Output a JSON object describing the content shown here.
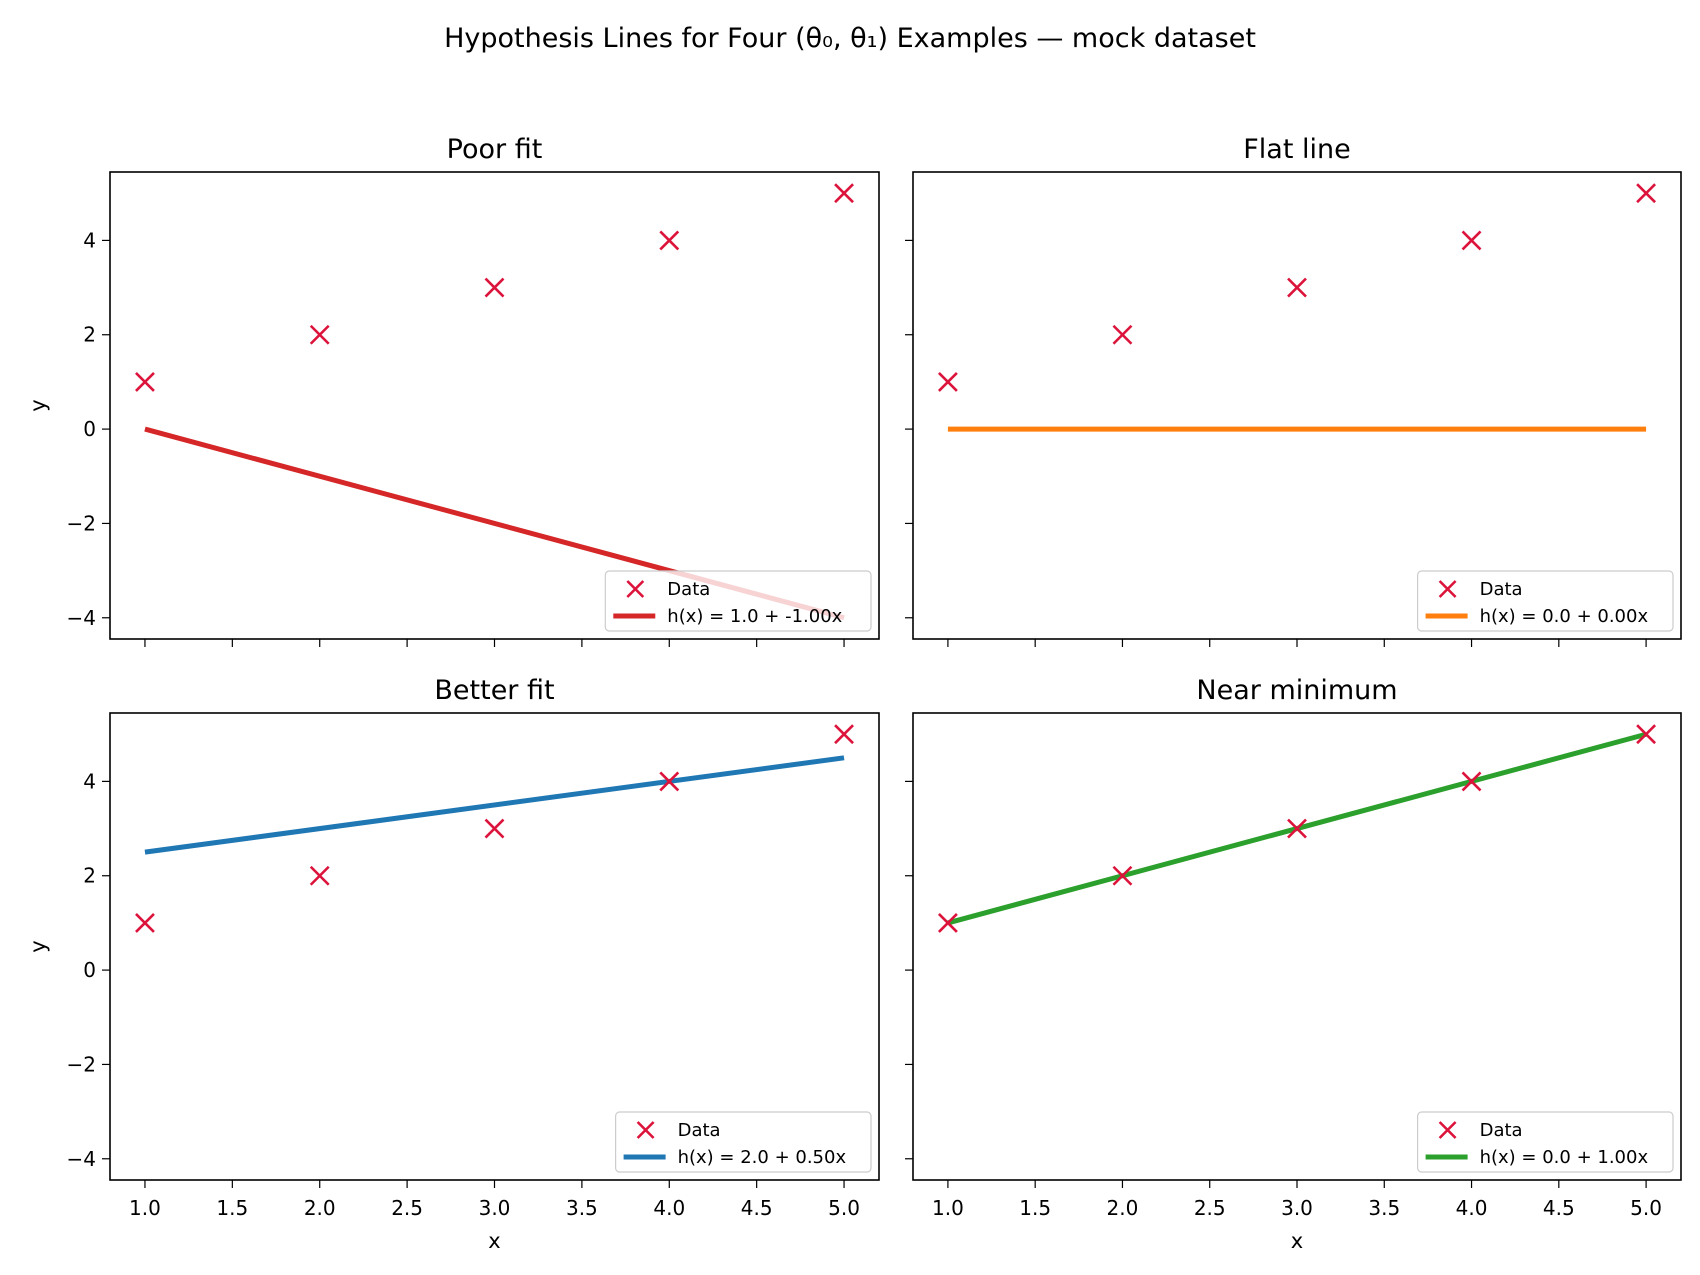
{
  "figure": {
    "title": "Hypothesis Lines for Four (θ₀, θ₁) Examples — mock dataset"
  },
  "chart_data": [
    {
      "type": "line",
      "title": "Poor fit",
      "xlabel": "",
      "ylabel": "y",
      "xlim": [
        0.8,
        5.2
      ],
      "ylim": [
        -4.45,
        5.45
      ],
      "xticks": [
        1.0,
        1.5,
        2.0,
        2.5,
        3.0,
        3.5,
        4.0,
        4.5,
        5.0
      ],
      "xtick_labels_visible": false,
      "yticks": [
        -4,
        -2,
        0,
        2,
        4
      ],
      "ytick_labels_visible": true,
      "legend_position": "lower-right",
      "scatter": {
        "name": "Data",
        "x": [
          1,
          2,
          3,
          4,
          5
        ],
        "y": [
          1,
          2,
          3,
          4,
          5
        ],
        "color": "#dc143c",
        "marker": "x"
      },
      "line": {
        "name": "h(x) = 1.0 + -1.00x",
        "x": [
          1,
          5
        ],
        "y": [
          0,
          -4
        ],
        "color": "#d62728"
      }
    },
    {
      "type": "line",
      "title": "Flat line",
      "xlabel": "",
      "ylabel": "",
      "xlim": [
        0.8,
        5.2
      ],
      "ylim": [
        -4.45,
        5.45
      ],
      "xticks": [
        1.0,
        1.5,
        2.0,
        2.5,
        3.0,
        3.5,
        4.0,
        4.5,
        5.0
      ],
      "xtick_labels_visible": false,
      "yticks": [
        -4,
        -2,
        0,
        2,
        4
      ],
      "ytick_labels_visible": false,
      "legend_position": "lower-right",
      "scatter": {
        "name": "Data",
        "x": [
          1,
          2,
          3,
          4,
          5
        ],
        "y": [
          1,
          2,
          3,
          4,
          5
        ],
        "color": "#dc143c",
        "marker": "x"
      },
      "line": {
        "name": "h(x) = 0.0 + 0.00x",
        "x": [
          1,
          5
        ],
        "y": [
          0,
          0
        ],
        "color": "#ff7f0e"
      }
    },
    {
      "type": "line",
      "title": "Better fit",
      "xlabel": "x",
      "ylabel": "y",
      "xlim": [
        0.8,
        5.2
      ],
      "ylim": [
        -4.45,
        5.45
      ],
      "xticks": [
        1.0,
        1.5,
        2.0,
        2.5,
        3.0,
        3.5,
        4.0,
        4.5,
        5.0
      ],
      "xtick_labels_visible": true,
      "yticks": [
        -4,
        -2,
        0,
        2,
        4
      ],
      "ytick_labels_visible": true,
      "legend_position": "lower-right",
      "scatter": {
        "name": "Data",
        "x": [
          1,
          2,
          3,
          4,
          5
        ],
        "y": [
          1,
          2,
          3,
          4,
          5
        ],
        "color": "#dc143c",
        "marker": "x"
      },
      "line": {
        "name": "h(x) = 2.0 + 0.50x",
        "x": [
          1,
          5
        ],
        "y": [
          2.5,
          4.5
        ],
        "color": "#1f77b4"
      }
    },
    {
      "type": "line",
      "title": "Near minimum",
      "xlabel": "x",
      "ylabel": "",
      "xlim": [
        0.8,
        5.2
      ],
      "ylim": [
        -4.45,
        5.45
      ],
      "xticks": [
        1.0,
        1.5,
        2.0,
        2.5,
        3.0,
        3.5,
        4.0,
        4.5,
        5.0
      ],
      "xtick_labels_visible": true,
      "yticks": [
        -4,
        -2,
        0,
        2,
        4
      ],
      "ytick_labels_visible": false,
      "legend_position": "lower-right",
      "scatter": {
        "name": "Data",
        "x": [
          1,
          2,
          3,
          4,
          5
        ],
        "y": [
          1,
          2,
          3,
          4,
          5
        ],
        "color": "#dc143c",
        "marker": "x"
      },
      "line": {
        "name": "h(x) = 0.0 + 1.00x",
        "x": [
          1,
          5
        ],
        "y": [
          1,
          5
        ],
        "color": "#2ca02c"
      }
    }
  ]
}
